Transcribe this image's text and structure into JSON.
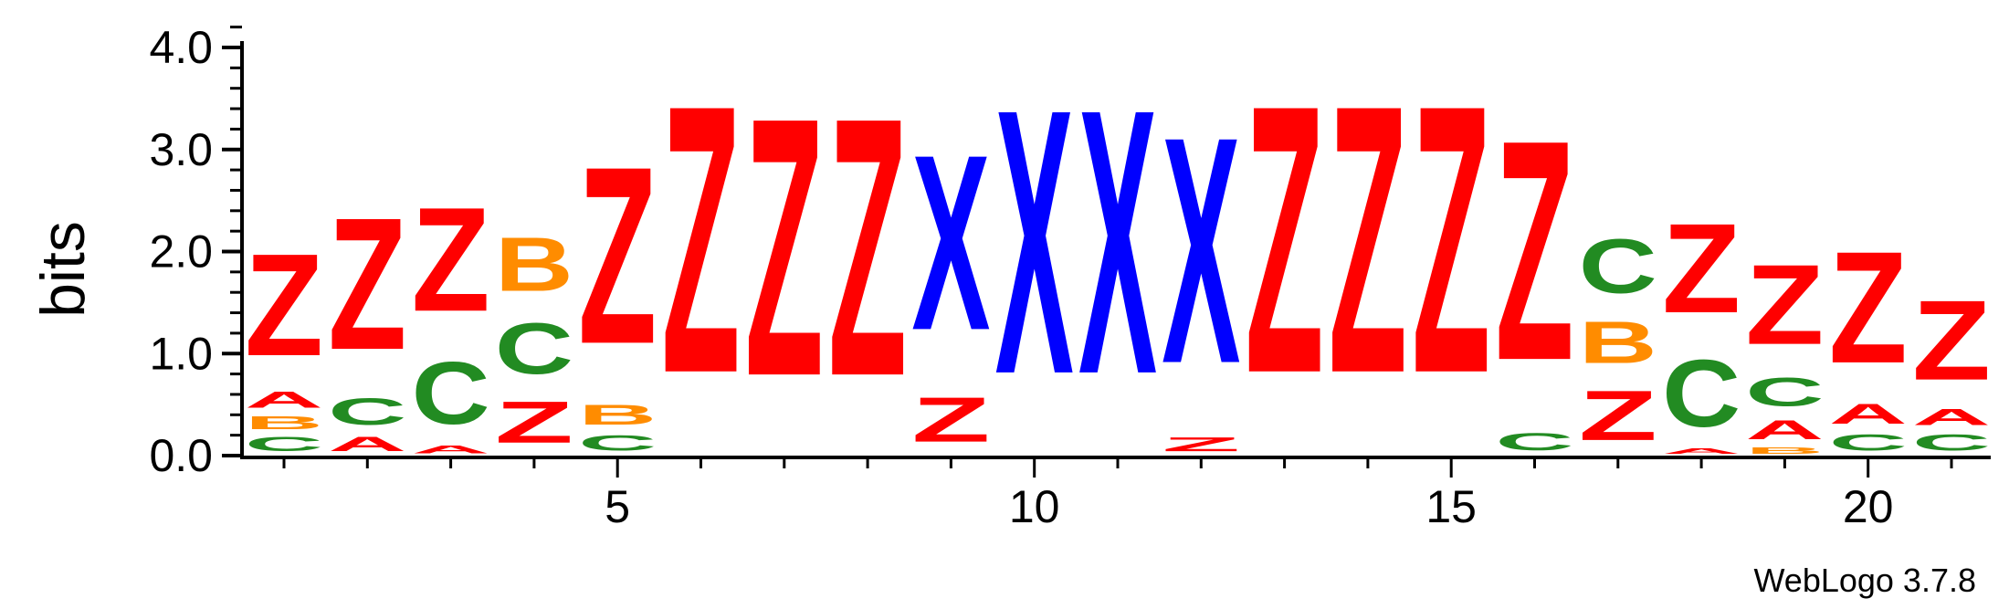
{
  "chart_data": {
    "type": "sequence-logo",
    "ylabel": "bits",
    "ylim": [
      0,
      4.2
    ],
    "ytick_values": [
      0,
      1,
      2,
      3,
      4
    ],
    "ytick_labels": [
      "0.0",
      "1.0",
      "2.0",
      "3.0",
      "4.0"
    ],
    "xtick_values": [
      5,
      10,
      15,
      20
    ],
    "xtick_labels": [
      "5",
      "10",
      "15",
      "20"
    ],
    "colors": {
      "Z": "#ff0000",
      "A": "#ff0000",
      "X": "#0000ff",
      "C": "#228b22",
      "B": "#ff8c00"
    },
    "stacks": [
      {
        "position": 1,
        "letters": [
          [
            "C",
            0.22
          ],
          [
            "B",
            0.2
          ],
          [
            "A",
            0.25
          ],
          [
            "Z",
            1.6
          ]
        ]
      },
      {
        "position": 2,
        "letters": [
          [
            "A",
            0.22
          ],
          [
            "C",
            0.42
          ],
          [
            "Z",
            2.07
          ]
        ]
      },
      {
        "position": 3,
        "letters": [
          [
            "A",
            0.12
          ],
          [
            "C",
            0.98
          ],
          [
            "Z",
            1.63
          ]
        ]
      },
      {
        "position": 4,
        "letters": [
          [
            "Z",
            0.65
          ],
          [
            "C",
            0.8
          ],
          [
            "B",
            0.85
          ]
        ]
      },
      {
        "position": 5,
        "letters": [
          [
            "C",
            0.24
          ],
          [
            "B",
            0.32
          ],
          [
            "Z",
            2.78
          ]
        ]
      },
      {
        "position": 6,
        "letters": [
          [
            "Z",
            4.2
          ]
        ]
      },
      {
        "position": 7,
        "letters": [
          [
            "Z",
            4.05
          ]
        ]
      },
      {
        "position": 8,
        "letters": [
          [
            "Z",
            4.05
          ]
        ]
      },
      {
        "position": 9,
        "letters": [
          [
            "Z",
            0.7
          ],
          [
            "X",
            2.75
          ]
        ]
      },
      {
        "position": 10,
        "letters": [
          [
            "X",
            4.15
          ]
        ]
      },
      {
        "position": 11,
        "letters": [
          [
            "X",
            4.15
          ]
        ]
      },
      {
        "position": 12,
        "letters": [
          [
            "Z",
            0.22
          ],
          [
            "X",
            3.55
          ]
        ]
      },
      {
        "position": 13,
        "letters": [
          [
            "Z",
            4.2
          ]
        ]
      },
      {
        "position": 14,
        "letters": [
          [
            "Z",
            4.2
          ]
        ]
      },
      {
        "position": 15,
        "letters": [
          [
            "Z",
            4.2
          ]
        ]
      },
      {
        "position": 16,
        "letters": [
          [
            "C",
            0.27
          ],
          [
            "Z",
            3.45
          ]
        ]
      },
      {
        "position": 17,
        "letters": [
          [
            "Z",
            0.78
          ],
          [
            "B",
            0.65
          ],
          [
            "C",
            0.85
          ]
        ]
      },
      {
        "position": 18,
        "letters": [
          [
            "A",
            0.08
          ],
          [
            "C",
            1.05
          ],
          [
            "Z",
            1.4
          ]
        ]
      },
      {
        "position": 19,
        "letters": [
          [
            "B",
            0.1
          ],
          [
            "A",
            0.3
          ],
          [
            "C",
            0.45
          ],
          [
            "Z",
            1.25
          ]
        ]
      },
      {
        "position": 20,
        "letters": [
          [
            "C",
            0.25
          ],
          [
            "A",
            0.32
          ],
          [
            "Z",
            1.75
          ]
        ]
      },
      {
        "position": 21,
        "letters": [
          [
            "C",
            0.25
          ],
          [
            "A",
            0.25
          ],
          [
            "Z",
            1.25
          ]
        ]
      }
    ]
  },
  "footer": {
    "credit": "WebLogo 3.7.8"
  }
}
